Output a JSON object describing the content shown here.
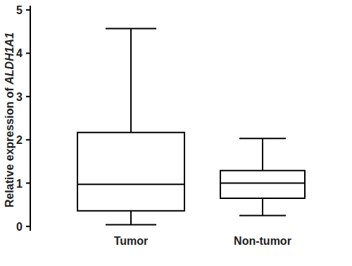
{
  "chart_data": {
    "type": "box",
    "y_label": "Relative expression of ALDH1A1",
    "categories": [
      "Tumor",
      "Non-tumor"
    ],
    "boxes": [
      {
        "min": 0.04,
        "q1": 0.36,
        "median": 0.97,
        "q3": 2.17,
        "max": 4.57
      },
      {
        "min": 0.25,
        "q1": 0.65,
        "median": 1.0,
        "q3": 1.29,
        "max": 2.03
      }
    ],
    "color": "#000000",
    "ylim": [
      -0.1,
      5.1
    ],
    "yticks": [
      0,
      1,
      2,
      3,
      4,
      5
    ],
    "grid": false
  }
}
